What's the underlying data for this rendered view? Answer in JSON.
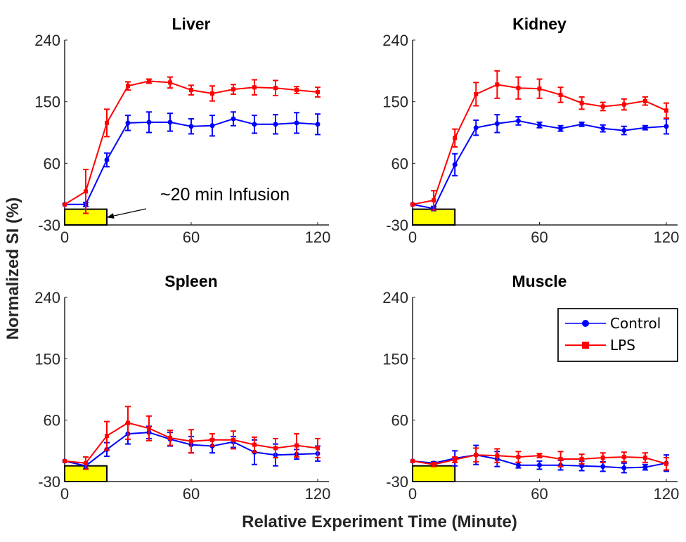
{
  "chart_data": {
    "type": "line",
    "ylabel": "Normalized SI (%)",
    "xlabel": "Relative Experiment Time (Minute)",
    "legend": {
      "placement": "top-right of Muscle panel",
      "entries": [
        {
          "name": "Control",
          "color": "#0000ff",
          "marker": "circle"
        },
        {
          "name": "LPS",
          "color": "#ff0000",
          "marker": "square"
        }
      ]
    },
    "x": [
      0,
      10,
      20,
      30,
      40,
      50,
      60,
      70,
      80,
      90,
      100,
      110,
      120
    ],
    "xlim": [
      0,
      120
    ],
    "ylim": [
      -30,
      240
    ],
    "xticks": [
      "0",
      "60",
      "120"
    ],
    "yticks": [
      "-30",
      "60",
      "150",
      "240"
    ],
    "infusion": {
      "start": 0,
      "end": 20,
      "color": "#ffff00",
      "label": "~20 min Infusion"
    },
    "panels": [
      {
        "title": "Liver",
        "series": [
          {
            "name": "Control",
            "values": [
              0,
              0,
              65,
              119,
              120,
              120,
              114,
              115,
              125,
              117,
              117,
              119,
              117
            ],
            "errors": [
              0,
              3,
              10,
              11,
              15,
              13,
              11,
              15,
              10,
              13,
              14,
              15,
              15
            ]
          },
          {
            "name": "LPS",
            "values": [
              0,
              19,
              119,
              173,
              180,
              178,
              167,
              162,
              168,
              171,
              170,
              167,
              164
            ],
            "errors": [
              0,
              32,
              20,
              6,
              3,
              8,
              7,
              11,
              7,
              11,
              11,
              5,
              7
            ]
          }
        ]
      },
      {
        "title": "Kidney",
        "series": [
          {
            "name": "Control",
            "values": [
              0,
              -6,
              58,
              112,
              118,
              122,
              116,
              111,
              117,
              111,
              108,
              112,
              114
            ],
            "errors": [
              0,
              3,
              16,
              11,
              13,
              6,
              4,
              4,
              3,
              5,
              6,
              3,
              11
            ]
          },
          {
            "name": "LPS",
            "values": [
              0,
              6,
              97,
              161,
              175,
              170,
              169,
              160,
              148,
              143,
              146,
              151,
              137
            ],
            "errors": [
              0,
              14,
              13,
              17,
              20,
              16,
              14,
              11,
              9,
              6,
              8,
              6,
              11
            ]
          }
        ]
      },
      {
        "title": "Spleen",
        "series": [
          {
            "name": "Control",
            "values": [
              0,
              -7,
              17,
              40,
              42,
              32,
              24,
              22,
              28,
              13,
              9,
              10,
              11
            ],
            "errors": [
              0,
              4,
              10,
              15,
              9,
              10,
              12,
              10,
              8,
              18,
              16,
              7,
              11
            ]
          },
          {
            "name": "LPS",
            "values": [
              0,
              -3,
              37,
              56,
              48,
              34,
              29,
              31,
              31,
              24,
              19,
              23,
              19
            ],
            "errors": [
              0,
              9,
              21,
              24,
              18,
              11,
              17,
              9,
              13,
              11,
              14,
              17,
              14
            ]
          }
        ]
      },
      {
        "title": "Muscle",
        "series": [
          {
            "name": "Control",
            "values": [
              0,
              -3,
              4,
              9,
              3,
              -6,
              -6,
              -6,
              -7,
              -8,
              -10,
              -9,
              -3
            ],
            "errors": [
              0,
              2,
              11,
              14,
              11,
              4,
              6,
              7,
              7,
              7,
              7,
              4,
              12
            ]
          },
          {
            "name": "LPS",
            "values": [
              0,
              -5,
              2,
              9,
              8,
              6,
              8,
              3,
              3,
              5,
              6,
              5,
              -4
            ],
            "errors": [
              0,
              3,
              4,
              10,
              10,
              8,
              3,
              11,
              7,
              7,
              7,
              7,
              9
            ]
          }
        ]
      }
    ]
  }
}
